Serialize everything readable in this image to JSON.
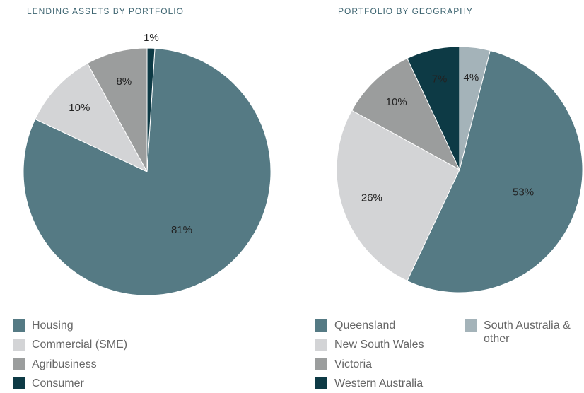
{
  "chart_data": [
    {
      "type": "pie",
      "title": "LENDING ASSETS BY PORTFOLIO",
      "categories": [
        "Housing",
        "Commercial (SME)",
        "Agribusiness",
        "Consumer"
      ],
      "values": [
        81,
        10,
        8,
        1
      ],
      "value_labels": [
        "81%",
        "10%",
        "8%",
        "1%"
      ],
      "colors": [
        "#557a84",
        "#d3d4d6",
        "#9b9d9d",
        "#0d3a45"
      ]
    },
    {
      "type": "pie",
      "title": "PORTFOLIO BY GEOGRAPHY",
      "categories": [
        "Queensland",
        "New South Wales",
        "Victoria",
        "Western Australia",
        "South Australia & other"
      ],
      "values": [
        53,
        26,
        10,
        7,
        4
      ],
      "value_labels": [
        "53%",
        "26%",
        "10%",
        "7%",
        "4%"
      ],
      "colors": [
        "#557a84",
        "#d3d4d6",
        "#9b9d9d",
        "#0d3a45",
        "#a4b3b9"
      ]
    }
  ]
}
